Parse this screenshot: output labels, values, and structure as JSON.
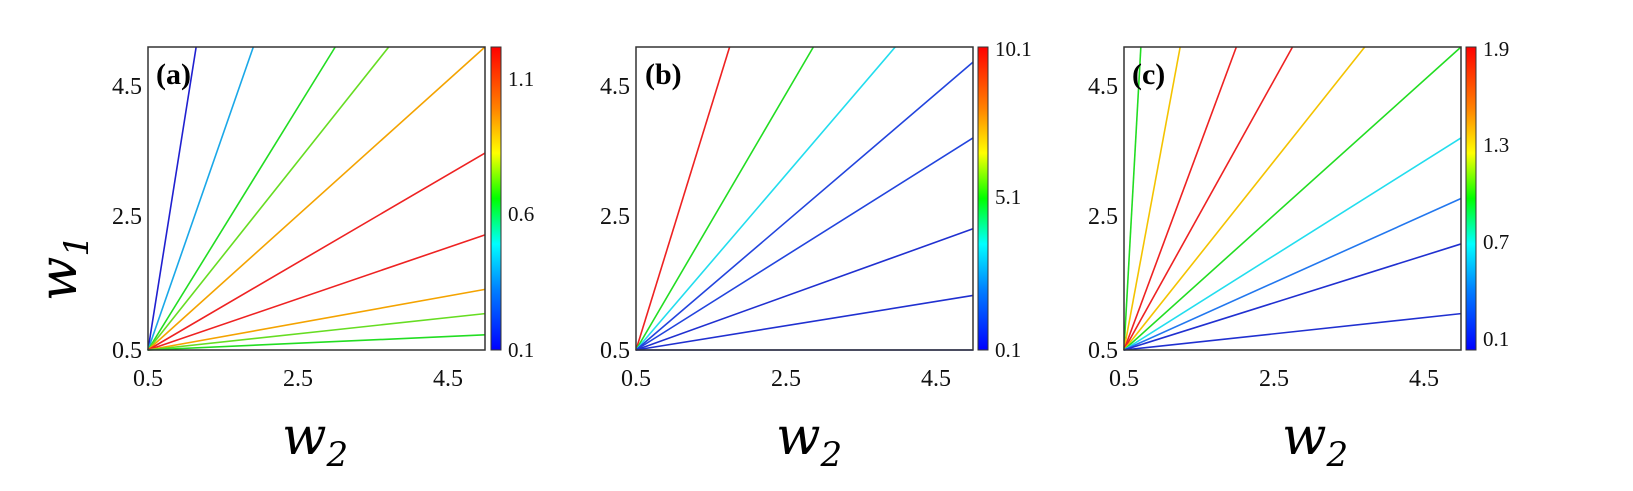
{
  "chart_data": [
    {
      "type": "contour",
      "panel_label": "(a)",
      "xlabel": "w2",
      "ylabel": "w1",
      "xlim": [
        0.5,
        5
      ],
      "ylim": [
        0.5,
        5
      ],
      "xticks": [
        "0.5",
        "2.5",
        "4.5"
      ],
      "yticks": [
        "0.5",
        "2.5",
        "4.5"
      ],
      "colorbar": {
        "range": [
          0.1,
          1.2
        ],
        "ticks": [
          "0.1",
          "0.6",
          "1.1"
        ]
      },
      "contour_lines": [
        {
          "slope": 7.0,
          "color": "#2020d0"
        },
        {
          "slope": 3.2,
          "color": "#1aa8e8"
        },
        {
          "slope": 1.8,
          "color": "#22dd22"
        },
        {
          "slope": 1.4,
          "color": "#66dd22"
        },
        {
          "slope": 1.0,
          "color": "#f4a300"
        },
        {
          "slope": 0.65,
          "color": "#ee2222"
        },
        {
          "slope": 0.38,
          "color": "#ee2222"
        },
        {
          "slope": 0.2,
          "color": "#f4a300"
        },
        {
          "slope": 0.12,
          "color": "#66dd22"
        },
        {
          "slope": 0.05,
          "color": "#22dd22"
        }
      ]
    },
    {
      "type": "contour",
      "panel_label": "(b)",
      "xlabel": "w2",
      "ylabel": "",
      "xlim": [
        0.5,
        5
      ],
      "ylim": [
        0.5,
        5
      ],
      "xticks": [
        "0.5",
        "2.5",
        "4.5"
      ],
      "yticks": [
        "0.5",
        "2.5",
        "4.5"
      ],
      "colorbar": {
        "range": [
          0.1,
          10.1
        ],
        "ticks": [
          "0.1",
          "5.1",
          "10.1"
        ]
      },
      "contour_lines": [
        {
          "slope": 3.6,
          "color": "#ee2222"
        },
        {
          "slope": 1.9,
          "color": "#22dd22"
        },
        {
          "slope": 1.3,
          "color": "#22ddee"
        },
        {
          "slope": 0.95,
          "color": "#2244dd"
        },
        {
          "slope": 0.7,
          "color": "#2244dd"
        },
        {
          "slope": 0.4,
          "color": "#2030d0"
        },
        {
          "slope": 0.18,
          "color": "#2030d0"
        },
        {
          "slope": 0.0,
          "color": "#2030d0"
        }
      ]
    },
    {
      "type": "contour",
      "panel_label": "(c)",
      "xlabel": "w2",
      "ylabel": "",
      "xlim": [
        0.5,
        5
      ],
      "ylim": [
        0.5,
        5
      ],
      "xticks": [
        "0.5",
        "2.5",
        "4.5"
      ],
      "yticks": [
        "0.5",
        "2.5",
        "4.5"
      ],
      "colorbar": {
        "range": [
          0.0,
          1.9
        ],
        "ticks": [
          "0.1",
          "0.7",
          "1.3",
          "1.9"
        ]
      },
      "contour_lines": [
        {
          "slope": 20.0,
          "color": "#22dd22"
        },
        {
          "slope": 6.0,
          "color": "#f4c300"
        },
        {
          "slope": 3.0,
          "color": "#ee2222"
        },
        {
          "slope": 2.0,
          "color": "#ee2222"
        },
        {
          "slope": 1.4,
          "color": "#f4c300"
        },
        {
          "slope": 1.0,
          "color": "#22dd22"
        },
        {
          "slope": 0.7,
          "color": "#22ddee"
        },
        {
          "slope": 0.5,
          "color": "#2277ee"
        },
        {
          "slope": 0.35,
          "color": "#2030d0"
        },
        {
          "slope": 0.12,
          "color": "#2030d0"
        }
      ]
    }
  ]
}
